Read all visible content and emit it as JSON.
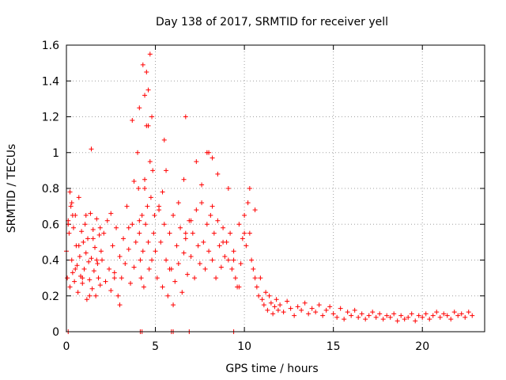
{
  "chart_data": {
    "type": "scatter",
    "title": "Day 138 of 2017, SRMTID for receiver yell",
    "xlabel": "GPS time / hours",
    "ylabel": "SRMTID / TECUs",
    "xlim": [
      0,
      23.5
    ],
    "ylim": [
      0,
      1.6
    ],
    "x_ticks": [
      0,
      5,
      10,
      15,
      20
    ],
    "x_tick_labels": [
      "0",
      "5",
      "10",
      "15",
      "20"
    ],
    "y_ticks": [
      0,
      0.2,
      0.4,
      0.6,
      0.8,
      1.0,
      1.2,
      1.4,
      1.6
    ],
    "y_tick_labels": [
      "0",
      "0.2",
      "0.4",
      "0.6",
      "0.8",
      "1",
      "1.2",
      "1.4",
      "1.6"
    ],
    "grid": true,
    "marker": "plus",
    "series": [
      {
        "name": "SRMTID",
        "color": "#ff0000",
        "x": [
          0.0,
          0.05,
          0.1,
          0.15,
          0.2,
          0.25,
          0.3,
          0.35,
          0.4,
          0.45,
          0.5,
          0.55,
          0.6,
          0.65,
          0.7,
          0.75,
          0.8,
          0.85,
          0.9,
          0.95,
          1.0,
          1.05,
          1.1,
          1.15,
          1.2,
          1.25,
          1.3,
          1.35,
          1.4,
          1.45,
          1.5,
          1.55,
          1.6,
          1.65,
          1.7,
          1.75,
          1.8,
          1.85,
          1.9,
          1.95,
          2.0,
          2.1,
          2.2,
          2.3,
          2.4,
          2.5,
          2.6,
          2.7,
          2.8,
          2.9,
          3.0,
          3.1,
          3.2,
          3.3,
          3.4,
          3.5,
          3.6,
          3.7,
          3.8,
          3.9,
          4.0,
          4.05,
          4.1,
          4.15,
          4.2,
          4.25,
          4.3,
          4.35,
          4.4,
          4.45,
          4.5,
          4.55,
          4.6,
          4.65,
          4.7,
          4.75,
          4.8,
          4.85,
          4.9,
          4.95,
          5.0,
          5.1,
          5.2,
          5.3,
          5.4,
          5.5,
          5.6,
          5.7,
          5.8,
          5.9,
          6.0,
          6.1,
          6.2,
          6.3,
          6.4,
          6.5,
          6.6,
          6.7,
          6.8,
          6.9,
          7.0,
          7.1,
          7.2,
          7.3,
          7.4,
          7.5,
          7.6,
          7.7,
          7.8,
          7.9,
          8.0,
          8.1,
          8.2,
          8.3,
          8.4,
          8.5,
          8.6,
          8.7,
          8.8,
          8.9,
          9.0,
          9.1,
          9.2,
          9.3,
          9.4,
          9.5,
          9.6,
          9.7,
          9.8,
          9.9,
          10.0,
          10.1,
          10.2,
          10.3,
          10.4,
          10.5,
          10.6,
          10.7,
          10.8,
          10.9,
          11.0,
          11.1,
          11.2,
          11.3,
          11.4,
          11.5,
          11.6,
          11.7,
          11.8,
          11.9,
          12.0,
          12.2,
          12.4,
          12.6,
          12.8,
          13.0,
          13.2,
          13.4,
          13.6,
          13.8,
          14.0,
          14.2,
          14.4,
          14.6,
          14.8,
          15.0,
          15.2,
          15.4,
          15.6,
          15.8,
          16.0,
          16.2,
          16.4,
          16.6,
          16.8,
          17.0,
          17.2,
          17.4,
          17.6,
          17.8,
          18.0,
          18.2,
          18.4,
          18.6,
          18.8,
          19.0,
          19.2,
          19.4,
          19.6,
          19.8,
          20.0,
          20.2,
          20.4,
          20.6,
          20.8,
          21.0,
          21.2,
          21.4,
          21.6,
          21.8,
          22.0,
          22.2,
          22.4,
          22.6,
          22.8,
          0.1,
          0.3,
          0.5,
          0.7,
          0.9,
          1.1,
          1.3,
          1.5,
          1.7,
          1.9,
          2.5,
          2.7,
          3.0,
          3.5,
          3.8,
          4.1,
          4.4,
          4.6,
          4.8,
          5.2,
          5.4,
          5.6,
          5.8,
          6.0,
          6.3,
          6.6,
          6.7,
          7.0,
          7.3,
          7.6,
          7.9,
          8.2,
          8.5,
          8.8,
          9.1,
          9.4,
          9.7,
          10.0,
          10.3,
          10.6,
          4.1,
          4.3,
          4.4,
          4.5,
          4.6,
          4.7,
          6.7,
          8.0,
          8.2,
          1.4,
          3.7,
          5.5,
          0.2,
          0.35,
          0.1,
          4.15,
          4.25,
          5.9,
          6.0,
          6.9,
          9.4
        ],
        "y": [
          0.45,
          0.3,
          0.62,
          0.55,
          0.25,
          0.7,
          0.4,
          0.33,
          0.58,
          0.28,
          0.65,
          0.48,
          0.37,
          0.22,
          0.75,
          0.42,
          0.31,
          0.56,
          0.27,
          0.5,
          0.35,
          0.6,
          0.44,
          0.18,
          0.52,
          0.39,
          0.29,
          0.66,
          0.41,
          0.24,
          0.57,
          0.34,
          0.47,
          0.2,
          0.63,
          0.38,
          0.3,
          0.54,
          0.26,
          0.45,
          0.4,
          0.55,
          0.28,
          0.62,
          0.35,
          0.23,
          0.48,
          0.33,
          0.58,
          0.2,
          0.42,
          0.3,
          0.52,
          0.38,
          0.7,
          0.46,
          0.27,
          0.6,
          0.36,
          0.5,
          1.0,
          0.8,
          0.55,
          0.4,
          0.3,
          0.65,
          0.45,
          0.25,
          0.85,
          0.6,
          1.15,
          0.7,
          0.5,
          0.35,
          0.95,
          0.75,
          0.4,
          0.9,
          0.55,
          0.65,
          0.45,
          0.3,
          0.7,
          0.5,
          0.25,
          0.6,
          0.4,
          0.2,
          0.55,
          0.35,
          0.65,
          0.28,
          0.48,
          0.38,
          0.58,
          0.22,
          0.44,
          0.52,
          0.32,
          0.62,
          0.42,
          0.55,
          0.3,
          0.68,
          0.48,
          0.38,
          0.72,
          0.5,
          0.35,
          0.6,
          0.45,
          0.65,
          0.4,
          0.55,
          0.3,
          0.62,
          0.48,
          0.36,
          0.58,
          0.42,
          0.5,
          0.4,
          0.55,
          0.35,
          0.45,
          0.3,
          0.25,
          0.6,
          0.38,
          0.52,
          0.65,
          0.48,
          0.72,
          0.55,
          0.4,
          0.35,
          0.3,
          0.25,
          0.2,
          0.3,
          0.18,
          0.15,
          0.22,
          0.12,
          0.2,
          0.16,
          0.1,
          0.14,
          0.18,
          0.12,
          0.15,
          0.11,
          0.17,
          0.13,
          0.09,
          0.14,
          0.12,
          0.16,
          0.1,
          0.13,
          0.11,
          0.15,
          0.09,
          0.12,
          0.14,
          0.1,
          0.08,
          0.13,
          0.07,
          0.11,
          0.09,
          0.12,
          0.08,
          0.1,
          0.07,
          0.09,
          0.11,
          0.08,
          0.1,
          0.07,
          0.09,
          0.08,
          0.1,
          0.06,
          0.09,
          0.07,
          0.08,
          0.1,
          0.06,
          0.09,
          0.08,
          0.1,
          0.07,
          0.09,
          0.11,
          0.08,
          0.1,
          0.09,
          0.07,
          0.11,
          0.09,
          0.1,
          0.08,
          0.11,
          0.09,
          0.6,
          0.72,
          0.35,
          0.48,
          0.3,
          0.65,
          0.2,
          0.52,
          0.4,
          0.58,
          0.66,
          0.3,
          0.15,
          0.58,
          0.84,
          0.62,
          0.8,
          1.35,
          1.2,
          0.68,
          0.78,
          0.9,
          0.35,
          0.15,
          0.72,
          0.85,
          0.55,
          0.62,
          0.95,
          0.82,
          1.0,
          0.7,
          0.88,
          0.5,
          0.8,
          0.4,
          0.25,
          0.55,
          0.8,
          0.68,
          1.25,
          1.49,
          1.32,
          1.45,
          1.15,
          1.55,
          1.2,
          1.0,
          0.97,
          1.02,
          1.18,
          1.07,
          0.78,
          0.65,
          0.0,
          0.0,
          0.0,
          0.0,
          0.0,
          0.0,
          0.0
        ]
      }
    ]
  }
}
